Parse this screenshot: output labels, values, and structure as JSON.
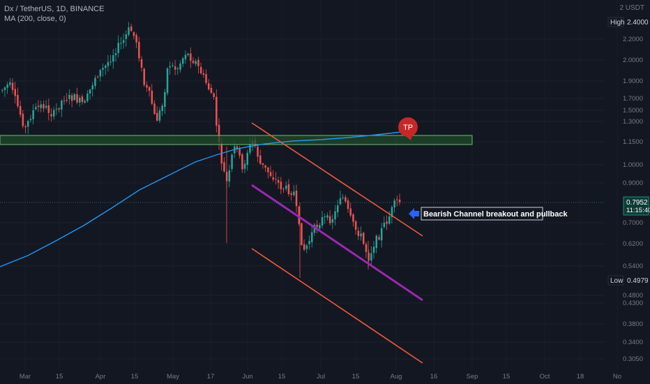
{
  "legend": {
    "symbol_line": "Dx / TetherUS, 1D, BINANCE",
    "indicator_line": "MA (200, close, 0)"
  },
  "price_axis": {
    "unit_label": "2 USDT",
    "ticks": [
      "2.2000",
      "2.0000",
      "1.9000",
      "1.7000",
      "1.5000",
      "1.3000",
      "1.1500",
      "1.0000",
      "0.9000",
      "0.7000",
      "0.6200",
      "0.5400",
      "0.4800",
      "0.4300",
      "0.3800",
      "0.3400",
      "0.3050"
    ],
    "high_badge": {
      "label": "High",
      "value": "2.4000"
    },
    "low_badge": {
      "label": "Low",
      "value": "0.4979"
    },
    "current_badge": {
      "price": "0.7952",
      "countdown": "11:15:40"
    }
  },
  "time_axis": {
    "ticks": [
      "Mar",
      "15",
      "Apr",
      "15",
      "May",
      "17",
      "Jun",
      "15",
      "Jul",
      "15",
      "Aug",
      "16",
      "Sep",
      "15",
      "Oct",
      "18",
      "No"
    ]
  },
  "annotations": {
    "tp_label": "TP",
    "callout_text": "Bearish Channel breakout and pullback"
  },
  "colors": {
    "background": "#131722",
    "up_candle": "#26a69a",
    "down_candle": "#ef5350",
    "moving_average": "#2196f3",
    "channel_lines": "#f05a3c",
    "channel_mid": "#9c27b0",
    "zone_fill": "#1f4a2a",
    "zone_border": "#6fbf73",
    "tp_bubble": "#c62828",
    "callout_arrow": "#2962ff",
    "price_badge": "#0d3b36",
    "axis_text": "#787b86"
  },
  "chart_data": {
    "type": "candlestick",
    "title": "",
    "xlabel": "",
    "ylabel": "",
    "scale": "log",
    "interval": "1D",
    "ylim": [
      0.295,
      2.6
    ],
    "moving_average_period": 200,
    "moving_average_range": [
      0.53,
      1.2
    ],
    "support_resistance_zone": [
      1.12,
      1.22
    ],
    "high": 2.4,
    "low": 0.4979,
    "last_price": 0.7952
  }
}
